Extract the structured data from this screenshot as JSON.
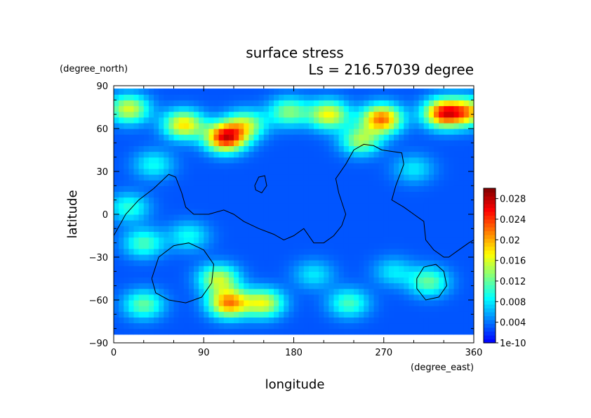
{
  "chart_data": {
    "type": "heatmap",
    "title": "surface stress",
    "subtitle": "Ls = 216.57039 degree",
    "xlabel": "longitude",
    "ylabel": "latitude",
    "xunit": "(degree_east)",
    "yunit": "(degree_north)",
    "xlim": [
      0,
      360
    ],
    "ylim": [
      -90,
      90
    ],
    "xticks": [
      "0",
      "90",
      "180",
      "270",
      "360"
    ],
    "yticks": [
      "90",
      "60",
      "30",
      "0",
      "−30",
      "−60",
      "−90"
    ],
    "colorbar": {
      "labels": [
        "0.028",
        "0.024",
        "0.02",
        "0.016",
        "0.012",
        "0.008",
        "0.004",
        "1e-10"
      ],
      "min": 0,
      "max": 0.03
    },
    "background_value": 0.003,
    "features": [
      {
        "lon": 15,
        "lat": 74,
        "value": 0.016
      },
      {
        "lon": 70,
        "lat": 63,
        "value": 0.018
      },
      {
        "lon": 112,
        "lat": 54,
        "value": 0.026
      },
      {
        "lon": 132,
        "lat": 63,
        "value": 0.014
      },
      {
        "lon": 175,
        "lat": 72,
        "value": 0.013
      },
      {
        "lon": 215,
        "lat": 70,
        "value": 0.017
      },
      {
        "lon": 268,
        "lat": 67,
        "value": 0.022
      },
      {
        "lon": 247,
        "lat": 52,
        "value": 0.014
      },
      {
        "lon": 330,
        "lat": 71,
        "value": 0.024
      },
      {
        "lon": 355,
        "lat": 72,
        "value": 0.017
      },
      {
        "lon": 40,
        "lat": 35,
        "value": 0.009
      },
      {
        "lon": 15,
        "lat": 5,
        "value": 0.01
      },
      {
        "lon": 30,
        "lat": -20,
        "value": 0.011
      },
      {
        "lon": 75,
        "lat": -15,
        "value": 0.009
      },
      {
        "lon": 105,
        "lat": -45,
        "value": 0.015
      },
      {
        "lon": 115,
        "lat": -62,
        "value": 0.021
      },
      {
        "lon": 150,
        "lat": -62,
        "value": 0.016
      },
      {
        "lon": 30,
        "lat": -63,
        "value": 0.012
      },
      {
        "lon": 235,
        "lat": -62,
        "value": 0.011
      },
      {
        "lon": 315,
        "lat": -47,
        "value": 0.012
      },
      {
        "lon": 280,
        "lat": -40,
        "value": 0.008
      },
      {
        "lon": 200,
        "lat": -42,
        "value": 0.008
      },
      {
        "lon": 300,
        "lat": 32,
        "value": 0.008
      }
    ]
  }
}
